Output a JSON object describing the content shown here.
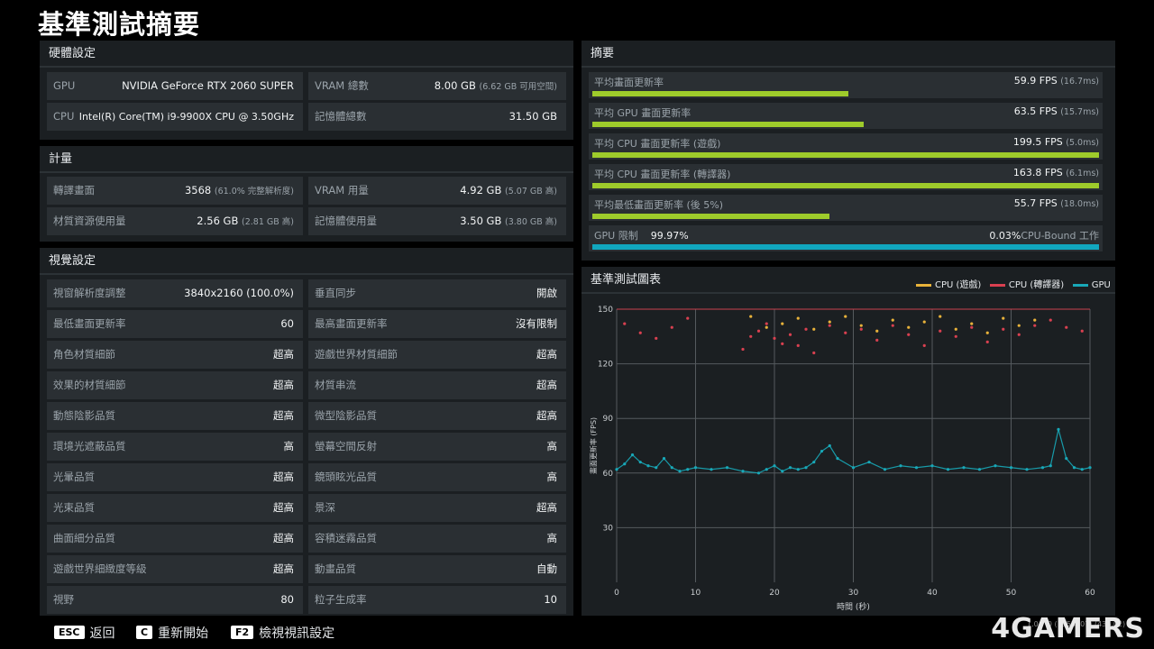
{
  "page": {
    "title": "基準測試摘要"
  },
  "hardware": {
    "header": "硬體設定",
    "gpu_label": "GPU",
    "gpu_value": "NVIDIA GeForce RTX 2060 SUPER",
    "cpu_label": "CPU",
    "cpu_value": "Intel(R) Core(TM) i9-9900X CPU @ 3.50GHz",
    "vram_label": "VRAM 總數",
    "vram_value": "8.00 GB",
    "vram_sub": "(6.62 GB 可用空間)",
    "mem_label": "記憶體總數",
    "mem_value": "31.50 GB"
  },
  "metrics": {
    "header": "計量",
    "render_label": "轉譯畫面",
    "render_value": "3568",
    "render_sub": "(61.0% 完整解析度)",
    "vram_use_label": "VRAM 用量",
    "vram_use_value": "4.92 GB",
    "vram_use_sub": "(5.07 GB 高)",
    "tex_label": "材質資源使用量",
    "tex_value": "2.56 GB",
    "tex_sub": "(2.81 GB 高)",
    "mem_use_label": "記憶體使用量",
    "mem_use_value": "3.50 GB",
    "mem_use_sub": "(3.80 GB 高)"
  },
  "visual": {
    "header": "視覺設定",
    "left": [
      {
        "label": "視窗解析度調整",
        "value": "3840x2160 (100.0%)"
      },
      {
        "label": "最低畫面更新率",
        "value": "60"
      },
      {
        "label": "角色材質細節",
        "value": "超高"
      },
      {
        "label": "效果的材質細節",
        "value": "超高"
      },
      {
        "label": "動態陰影品質",
        "value": "超高"
      },
      {
        "label": "環境光遮蔽品質",
        "value": "高"
      },
      {
        "label": "光暈品質",
        "value": "超高"
      },
      {
        "label": "光束品質",
        "value": "超高"
      },
      {
        "label": "曲面細分品質",
        "value": "超高"
      },
      {
        "label": "遊戲世界細緻度等級",
        "value": "超高"
      },
      {
        "label": "視野",
        "value": "80"
      }
    ],
    "right": [
      {
        "label": "垂直同步",
        "value": "開啟"
      },
      {
        "label": "最高畫面更新率",
        "value": "沒有限制"
      },
      {
        "label": "遊戲世界材質細節",
        "value": "超高"
      },
      {
        "label": "材質串流",
        "value": "超高"
      },
      {
        "label": "微型陰影品質",
        "value": "超高"
      },
      {
        "label": "螢幕空間反射",
        "value": "高"
      },
      {
        "label": "鏡頭眩光品質",
        "value": "高"
      },
      {
        "label": "景深",
        "value": "超高"
      },
      {
        "label": "容積迷霧品質",
        "value": "高"
      },
      {
        "label": "動畫品質",
        "value": "自動"
      },
      {
        "label": "粒子生成率",
        "value": "10"
      }
    ]
  },
  "summary": {
    "header": "摘要",
    "rows": [
      {
        "label": "平均畫面更新率",
        "value": "59.9 FPS",
        "sub": "(16.7ms)",
        "fill": 0.505
      },
      {
        "label": "平均 GPU 畫面更新率",
        "value": "63.5 FPS",
        "sub": "(15.7ms)",
        "fill": 0.535
      },
      {
        "label": "平均 CPU 畫面更新率 (遊戲)",
        "value": "199.5 FPS",
        "sub": "(5.0ms)",
        "fill": 1.0
      },
      {
        "label": "平均 CPU 畫面更新率 (轉譯器)",
        "value": "163.8 FPS",
        "sub": "(6.1ms)",
        "fill": 1.0
      },
      {
        "label": "平均最低畫面更新率 (後 5%)",
        "value": "55.7 FPS",
        "sub": "(18.0ms)",
        "fill": 0.468
      }
    ],
    "gpu_limit": {
      "label": "GPU 限制",
      "value": "99.97%",
      "right_value": "0.03%",
      "right_label": "CPU-Bound 工作",
      "fill": 1.0
    }
  },
  "chart_panel": {
    "header": "基準測試圖表",
    "legend": [
      {
        "name": "CPU (遊戲)",
        "color": "#e8b23a"
      },
      {
        "name": "CPU (轉譯器)",
        "color": "#d94050"
      },
      {
        "name": "GPU",
        "color": "#18a8b8"
      }
    ]
  },
  "chart_data": {
    "type": "scatter",
    "xlabel": "時間 (秒)",
    "ylabel": "畫面更新率 (FPS)",
    "xlim": [
      0,
      60
    ],
    "ylim": [
      0,
      150
    ],
    "x_ticks": [
      0,
      10,
      20,
      30,
      40,
      50,
      60
    ],
    "y_ticks": [
      30,
      60,
      90,
      120,
      150
    ],
    "series": [
      {
        "name": "GPU",
        "color": "#18a8b8",
        "x": [
          0,
          1,
          2,
          3,
          4,
          5,
          6,
          7,
          8,
          9,
          10,
          12,
          14,
          16,
          18,
          19,
          20,
          21,
          22,
          23,
          24,
          25,
          26,
          27,
          28,
          30,
          32,
          34,
          36,
          38,
          40,
          42,
          44,
          46,
          48,
          50,
          52,
          54,
          55,
          56,
          57,
          58,
          59,
          60
        ],
        "values": [
          62,
          65,
          70,
          66,
          64,
          63,
          68,
          63,
          61,
          62,
          63,
          62,
          63,
          61,
          60,
          62,
          64,
          61,
          63,
          62,
          63,
          66,
          72,
          75,
          68,
          63,
          66,
          62,
          64,
          63,
          64,
          62,
          63,
          62,
          64,
          63,
          62,
          63,
          64,
          84,
          68,
          63,
          62,
          63
        ]
      },
      {
        "name": "CPU (遊戲)",
        "x": [
          17,
          19,
          21,
          23,
          25,
          27,
          29,
          31,
          33,
          35,
          37,
          39,
          41,
          43,
          45,
          47,
          49,
          51,
          53
        ],
        "values": [
          146,
          140,
          142,
          145,
          139,
          143,
          146,
          141,
          138,
          144,
          140,
          143,
          146,
          139,
          142,
          137,
          145,
          141,
          144
        ]
      },
      {
        "name": "CPU (轉譯器)",
        "x": [
          1,
          3,
          5,
          7,
          9,
          16,
          17,
          18,
          19,
          20,
          21,
          22,
          23,
          24,
          25,
          27,
          29,
          31,
          33,
          35,
          37,
          39,
          41,
          43,
          45,
          47,
          49,
          51,
          53,
          55,
          57,
          59
        ],
        "values": [
          142,
          137,
          134,
          140,
          145,
          128,
          135,
          138,
          142,
          134,
          131,
          136,
          130,
          139,
          126,
          141,
          137,
          139,
          133,
          141,
          136,
          130,
          138,
          135,
          140,
          132,
          139,
          136,
          141,
          144,
          140,
          138
        ]
      }
    ]
  },
  "footer": {
    "esc_key": "ESC",
    "esc_label": "返回",
    "c_key": "C",
    "c_label": "重新開始",
    "f2_key": "F2",
    "f2_label": "檢視視訊設定"
  },
  "watermark": "4GAMERS",
  "build_text": "1.0.7.0 (1953407) (436.02)"
}
